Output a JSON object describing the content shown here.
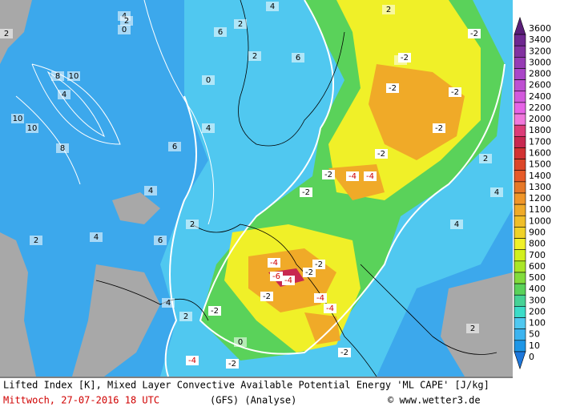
{
  "legend": {
    "labels": [
      "3600",
      "3400",
      "3200",
      "3000",
      "2800",
      "2600",
      "2400",
      "2200",
      "2000",
      "1800",
      "1700",
      "1600",
      "1500",
      "1400",
      "1300",
      "1200",
      "1100",
      "1000",
      "900",
      "800",
      "700",
      "600",
      "500",
      "400",
      "300",
      "200",
      "100",
      "50",
      "10",
      "0"
    ],
    "colors": [
      "#5a1e78",
      "#6e2890",
      "#8232a0",
      "#963cb4",
      "#aa46c8",
      "#be50d2",
      "#d25adc",
      "#e664e6",
      "#f078dc",
      "#dc3c78",
      "#c82850",
      "#d23232",
      "#dc4628",
      "#e65a28",
      "#e67828",
      "#f09628",
      "#f0aa28",
      "#f0be28",
      "#f0d228",
      "#f0f028",
      "#d2f01e",
      "#aae628",
      "#82dc3c",
      "#5ad25a",
      "#46d296",
      "#3cdcc8",
      "#50c8f0",
      "#3cb4f0",
      "#1e96e6",
      "#1e78dc"
    ]
  },
  "contour_labels": [
    "2",
    "4",
    "0",
    "2",
    "10",
    "8",
    "10",
    "4",
    "10",
    "8",
    "6",
    "4",
    "2",
    "6",
    "0",
    "2",
    "4",
    "6",
    "2",
    "4",
    "0",
    "2",
    "-2",
    "-2",
    "-2",
    "-2",
    "-2",
    "-4",
    "-4",
    "-2",
    "-2",
    "-2",
    "-4",
    "-6",
    "-2",
    "-4",
    "-2",
    "-4",
    "-4",
    "-2",
    "-2",
    "-4",
    "-2",
    "2",
    "4",
    "6",
    "4",
    "2",
    "0",
    "-2",
    "2",
    "4",
    "4",
    "2"
  ],
  "footer": {
    "line1": "Lifted Index [K], Mixed Layer Convective Available Potential Energy 'ML CAPE' [J/kg]",
    "date": "Mittwoch, 27-07-2016  18 UTC",
    "model": "(GFS)  (Analyse)",
    "site": "© www.wetter3.de"
  }
}
